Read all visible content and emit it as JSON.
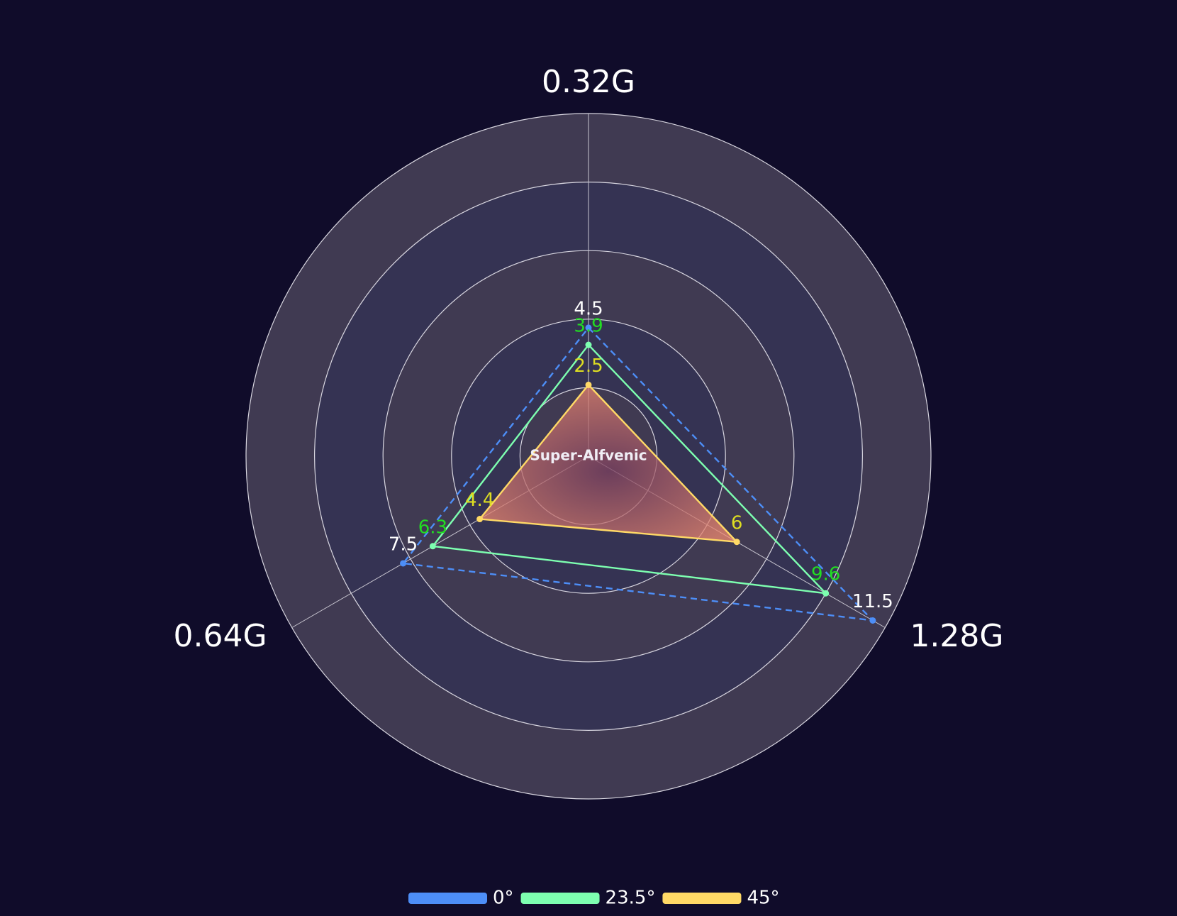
{
  "chart_data": {
    "type": "radar",
    "categories": [
      "0.32G",
      "1.28G",
      "0.64G"
    ],
    "series": [
      {
        "name": "0°",
        "color": "#4d8ef7",
        "linestyle": "dashed",
        "label_color": "#ffffff",
        "values": [
          4.5,
          11.5,
          7.5
        ]
      },
      {
        "name": "23.5°",
        "color": "#7dffb0",
        "linestyle": "solid",
        "label_color": "#22dd22",
        "values": [
          3.9,
          9.6,
          6.3
        ]
      },
      {
        "name": "45°",
        "color": "#ffd966",
        "linestyle": "solid",
        "label_color": "#dddd22",
        "fill": true,
        "values": [
          2.5,
          6,
          4.4
        ]
      }
    ],
    "ylim": [
      0,
      12
    ],
    "yticks": [
      2.4,
      4.8,
      7.2,
      9.6,
      12
    ],
    "grid": true,
    "annotation": "Super-Alfvenic",
    "legend": "bottom"
  }
}
